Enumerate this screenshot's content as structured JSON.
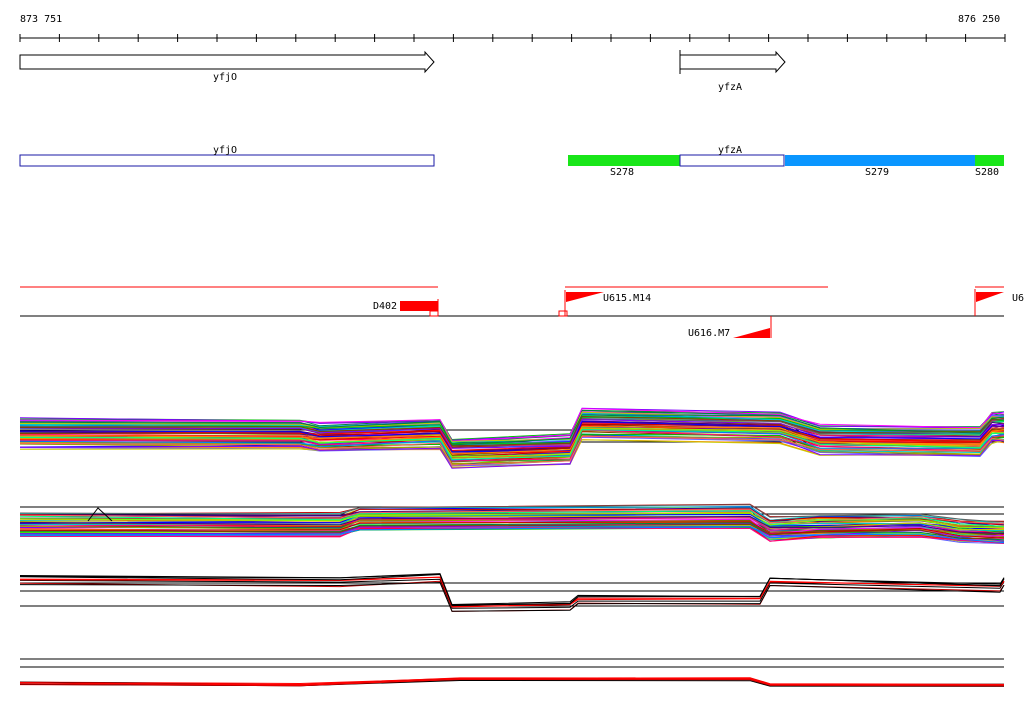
{
  "ruler": {
    "start_label": "873 751",
    "end_label": "876 250"
  },
  "genes": [
    {
      "name": "yfjO",
      "strand": "+"
    },
    {
      "name": "yfzA",
      "strand": "+"
    }
  ],
  "segments": [
    {
      "label": "",
      "color": "#ffffff",
      "outline": "#1a1aa6",
      "gene_label": "yfjO"
    },
    {
      "label": "S278",
      "color": "#19e619"
    },
    {
      "label": "",
      "color": "#ffffff",
      "outline": "#1a1aa6",
      "gene_label": "yfzA"
    },
    {
      "label": "S279",
      "color": "#0a96ff"
    },
    {
      "label": "S280",
      "color": "#19e619"
    }
  ],
  "features": [
    {
      "label": "D402"
    },
    {
      "label": "U615.M14"
    },
    {
      "label": "U616.M7"
    },
    {
      "label": "U6"
    }
  ],
  "colors": {
    "feature_red": "#ff0000",
    "track_black": "#000000"
  }
}
